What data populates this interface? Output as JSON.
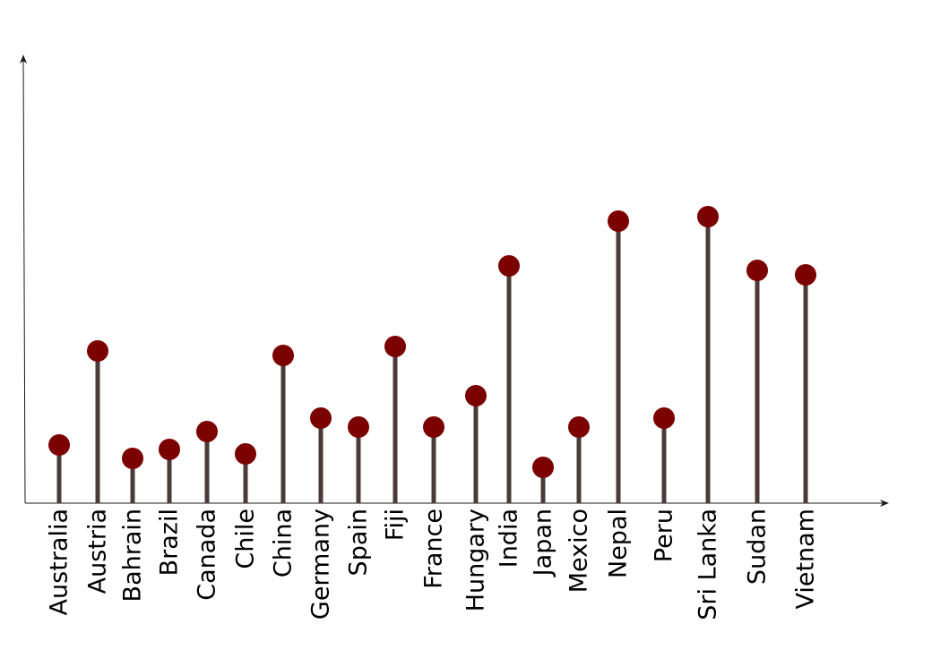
{
  "colors": {
    "background": "#ffffff",
    "axis": "#1a1a1a",
    "stem": "#4a3b39",
    "marker": "#7b0000"
  },
  "chart_data": {
    "type": "lollipop",
    "title": "",
    "xlabel": "",
    "ylabel": "",
    "ylim": [
      0,
      100
    ],
    "grid": false,
    "legend": "none",
    "y_ticks_shown": false,
    "categories": [
      "Australia",
      "Austria",
      "Bahrain",
      "Brazil",
      "Canada",
      "Chile",
      "China",
      "Germany",
      "Spain",
      "Fiji",
      "France",
      "Hungary",
      "India",
      "Japan",
      "Mexico",
      "Nepal",
      "Peru",
      "Sri Lanka",
      "Sudan",
      "Vietnam"
    ],
    "values": [
      13,
      34,
      10,
      12,
      16,
      11,
      33,
      19,
      17,
      35,
      17,
      24,
      53,
      8,
      17,
      63,
      19,
      64,
      52,
      51
    ]
  }
}
